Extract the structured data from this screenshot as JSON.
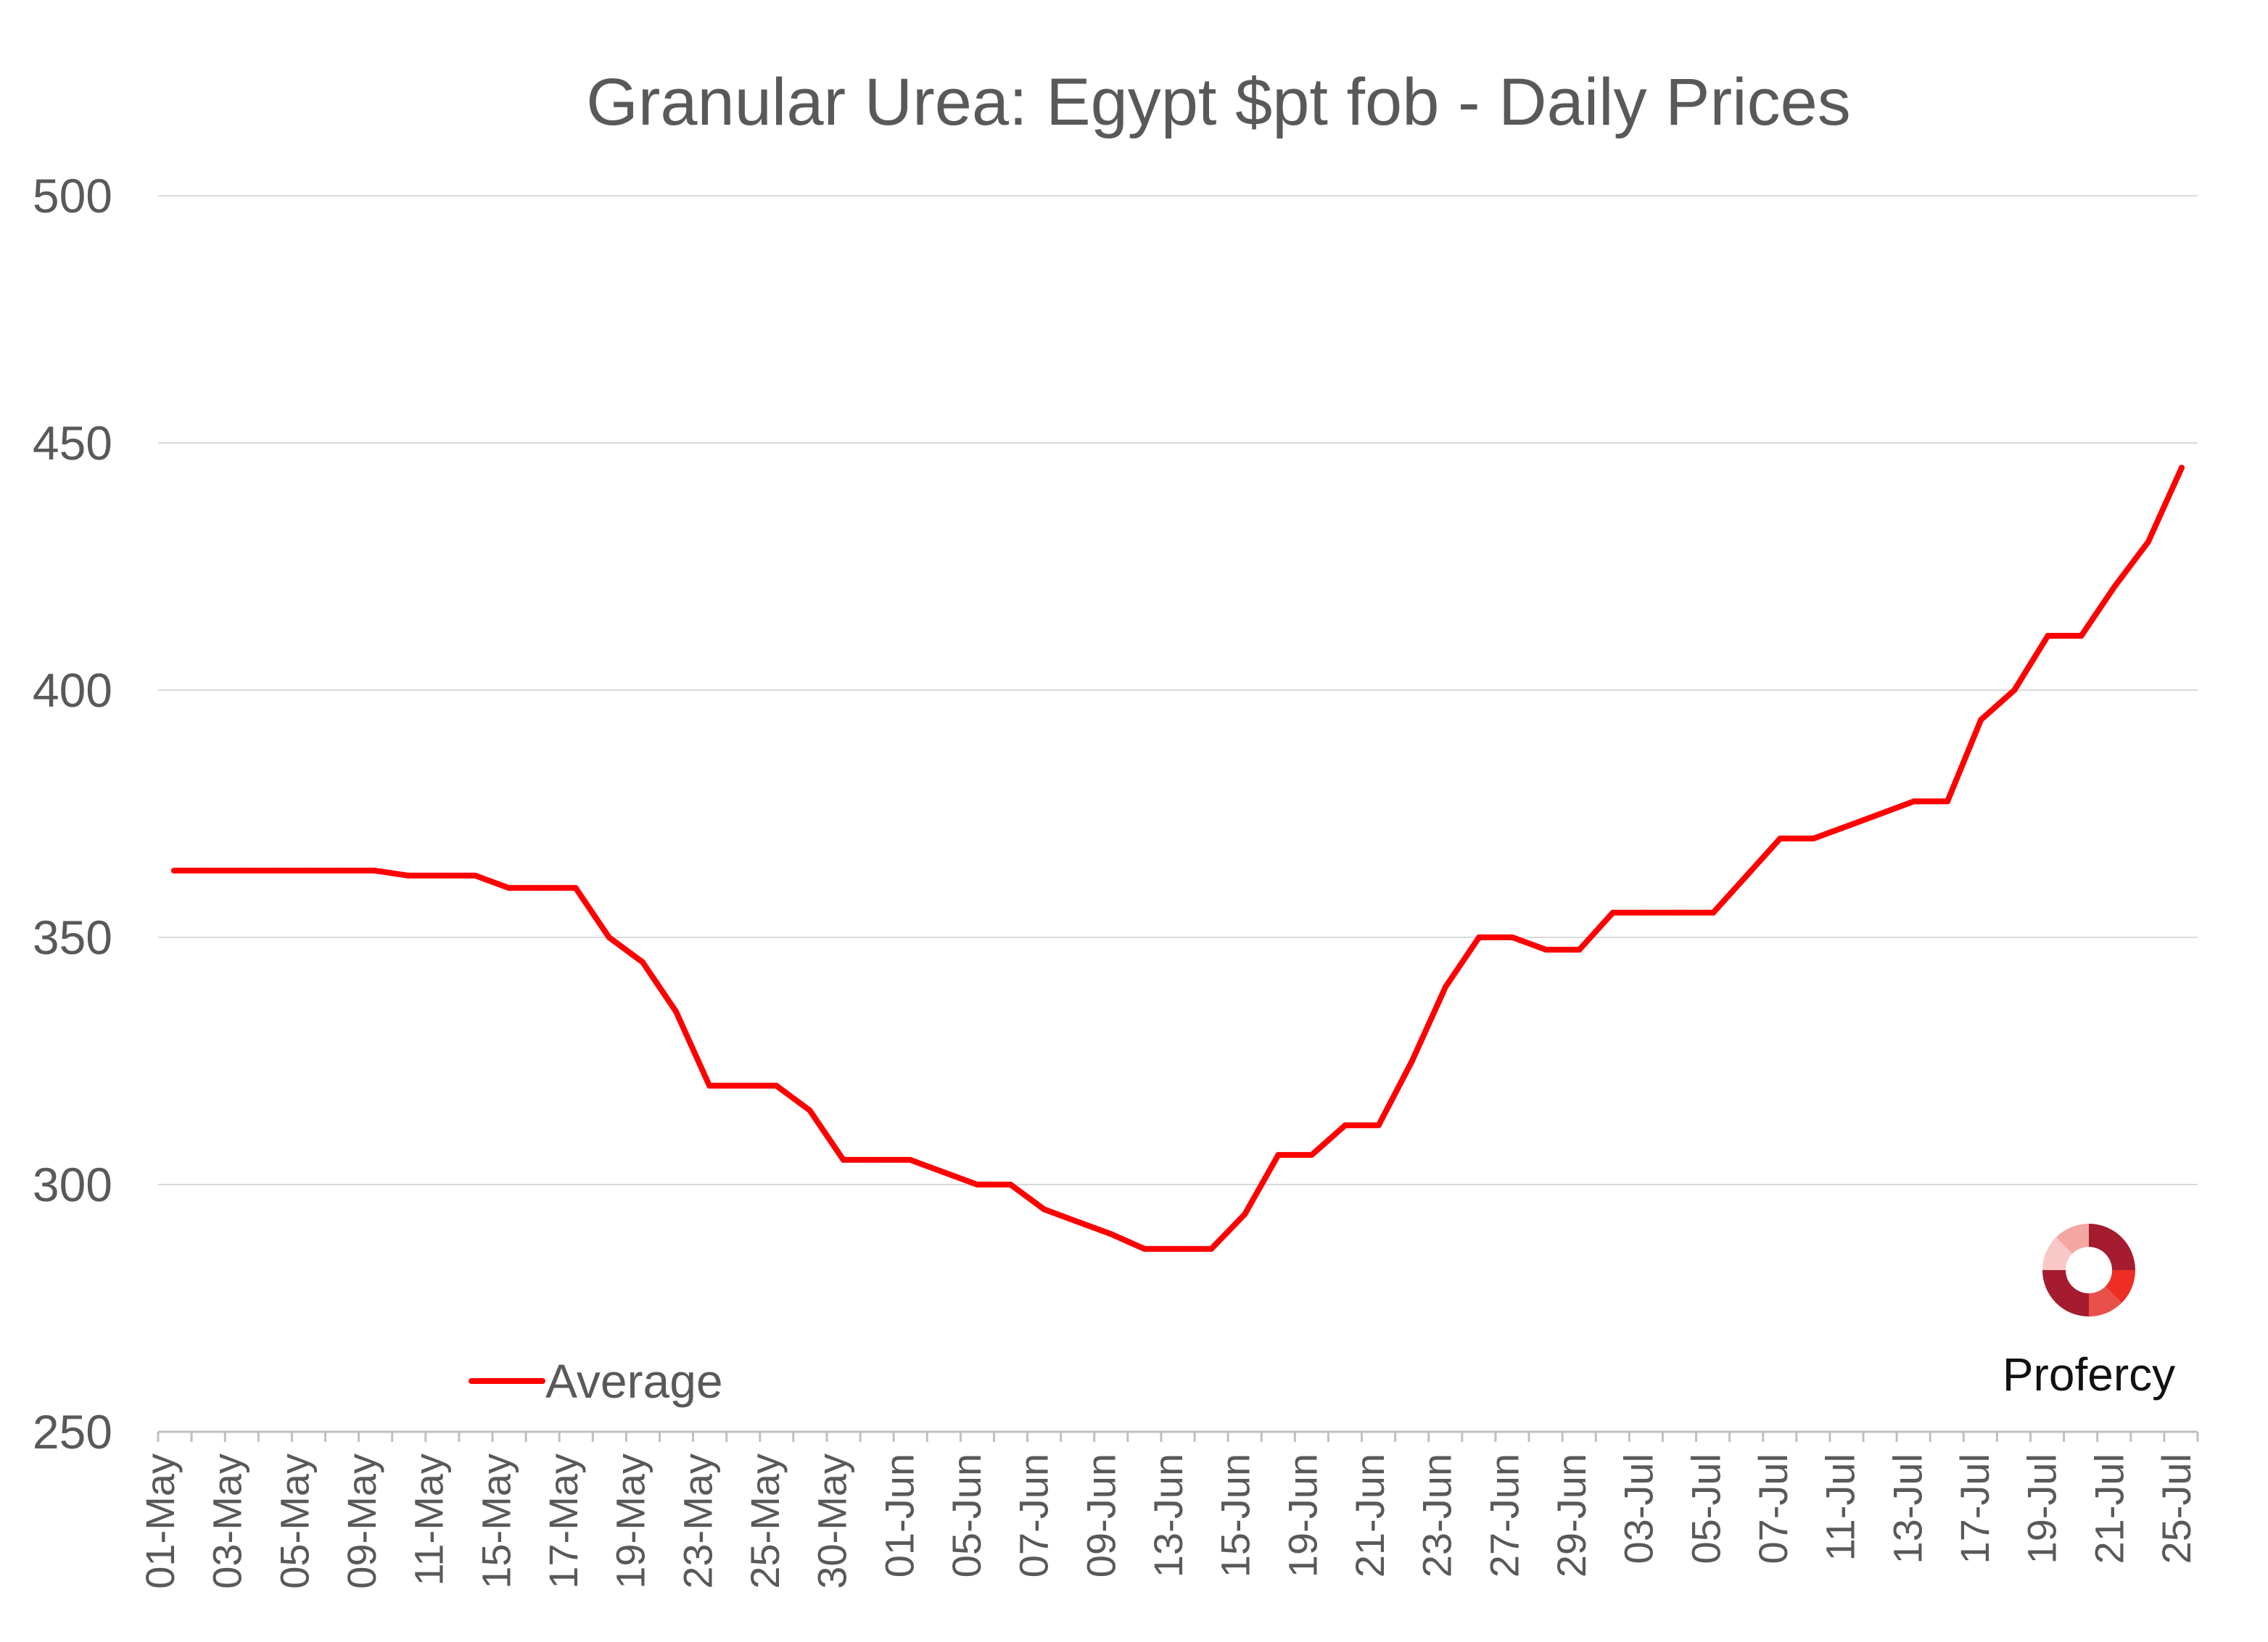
{
  "colors": {
    "series": "#ff0000",
    "text": "#595959",
    "grid": "#d9d9d9",
    "axis": "#bfbfbf",
    "logo_dark": "#a51c30",
    "logo_mid": "#e8504a",
    "logo_light": "#f4a6a2",
    "logo_pale": "#f9c8c6"
  },
  "logo": {
    "text": "Profercy",
    "icon": "profercy-logo-icon"
  },
  "chart_data": {
    "type": "line",
    "title": "Granular Urea: Egypt $pt fob - Daily Prices",
    "xlabel": "",
    "ylabel": "",
    "ylim": [
      250,
      500
    ],
    "yticks": [
      250,
      300,
      350,
      400,
      450,
      500
    ],
    "grid": true,
    "legend_position": "bottom-left",
    "x_tick_labels": [
      "01-May",
      "03-May",
      "05-May",
      "09-May",
      "11-May",
      "15-May",
      "17-May",
      "19-May",
      "23-May",
      "25-May",
      "30-May",
      "01-Jun",
      "05-Jun",
      "07-Jun",
      "09-Jun",
      "13-Jun",
      "15-Jun",
      "19-Jun",
      "21-Jun",
      "23-Jun",
      "27-Jun",
      "29-Jun",
      "03-Jul",
      "05-Jul",
      "07-Jul",
      "11-Jul",
      "13-Jul",
      "17-Jul",
      "19-Jul",
      "21-Jul",
      "25-Jul"
    ],
    "series": [
      {
        "name": "Average",
        "values": [
          363.5,
          363.5,
          363.5,
          363.5,
          363.5,
          363.5,
          363.5,
          362.5,
          362.5,
          362.5,
          360,
          360,
          360,
          350,
          345,
          335,
          320,
          320,
          320,
          315,
          305,
          305,
          305,
          302.5,
          300,
          300,
          295,
          292.5,
          290,
          287,
          287,
          287,
          294,
          306,
          306,
          312,
          312,
          325,
          340,
          350,
          350,
          347.5,
          347.5,
          355,
          355,
          355,
          355,
          362.5,
          370,
          370,
          372.5,
          375,
          377.5,
          377.5,
          394,
          400,
          411,
          411,
          421,
          430,
          445
        ]
      }
    ]
  }
}
